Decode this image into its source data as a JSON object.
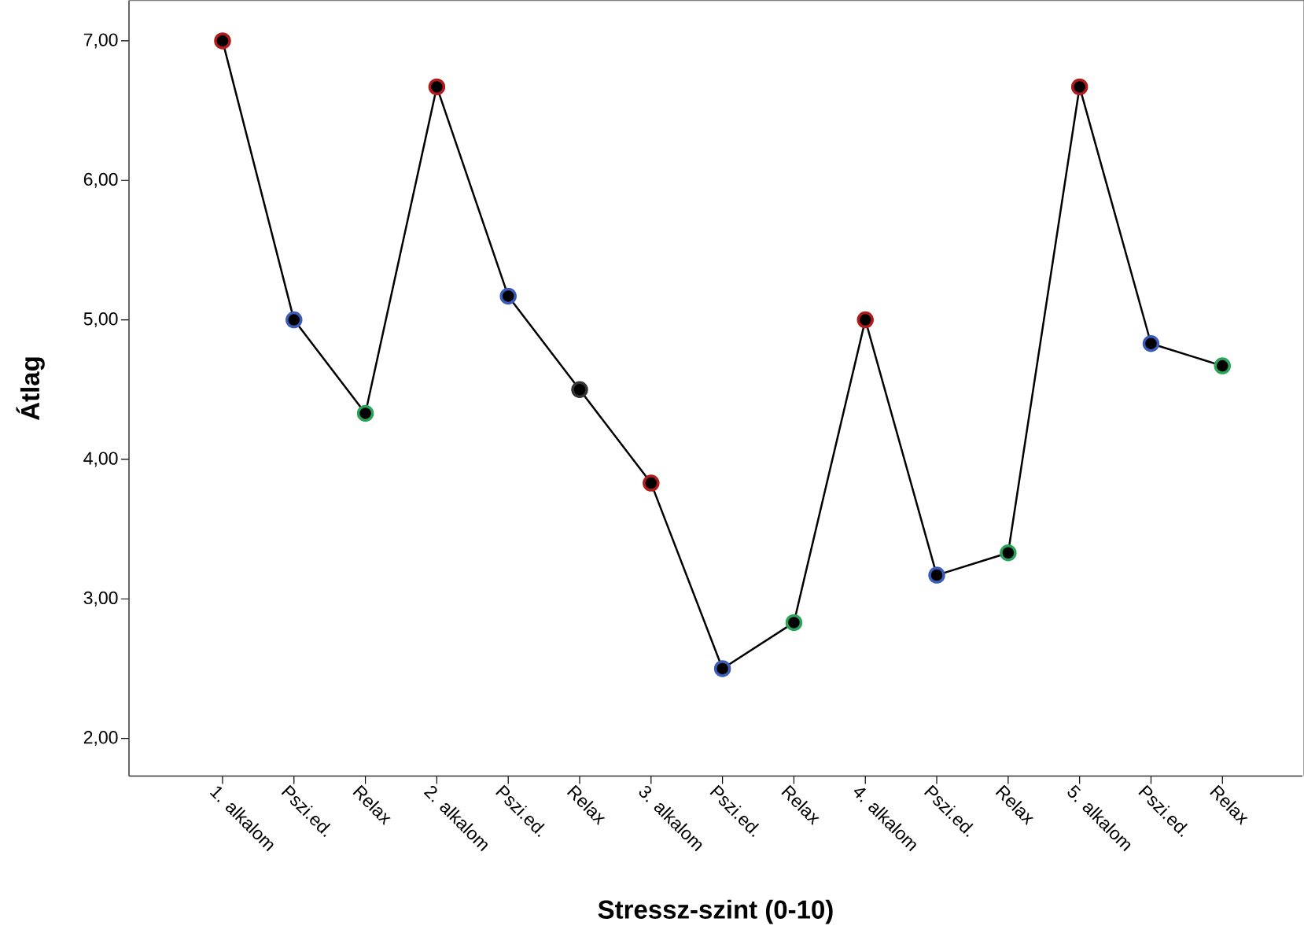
{
  "chart_data": {
    "type": "line",
    "xlabel": "Stressz-szint (0-10)",
    "ylabel": "Átlag",
    "categories": [
      "1. alkalom",
      "Pszi.ed.",
      "Relax",
      "2. alkalom",
      "Pszi.ed.",
      "Relax",
      "3. alkalom",
      "Pszi.ed.",
      "Relax",
      "4. alkalom",
      "Pszi.ed.",
      "Relax",
      "5. alkalom",
      "Pszi.ed.",
      "Relax"
    ],
    "values": [
      7.0,
      5.0,
      4.33,
      6.67,
      5.17,
      4.5,
      3.83,
      2.5,
      2.83,
      5.0,
      3.17,
      3.33,
      6.67,
      4.83,
      4.67
    ],
    "color": "#000000",
    "colors": [
      "#b01c1c",
      "#3b5cb8",
      "#2ca35a",
      "#b01c1c",
      "#3b5cb8",
      "#333333",
      "#b01c1c",
      "#3b5cb8",
      "#2ca35a",
      "#b01c1c",
      "#3b5cb8",
      "#2ca35a",
      "#b01c1c",
      "#3b5cb8",
      "#2ca35a"
    ],
    "marker": "circle",
    "ylim": [
      1.73,
      7.29
    ],
    "yticks": [
      {
        "value": 2,
        "label": "2,00"
      },
      {
        "value": 3,
        "label": "3,00"
      },
      {
        "value": 4,
        "label": "4,00"
      },
      {
        "value": 5,
        "label": "5,00"
      },
      {
        "value": 6,
        "label": "6,00"
      },
      {
        "value": 7,
        "label": "7,00"
      }
    ]
  }
}
